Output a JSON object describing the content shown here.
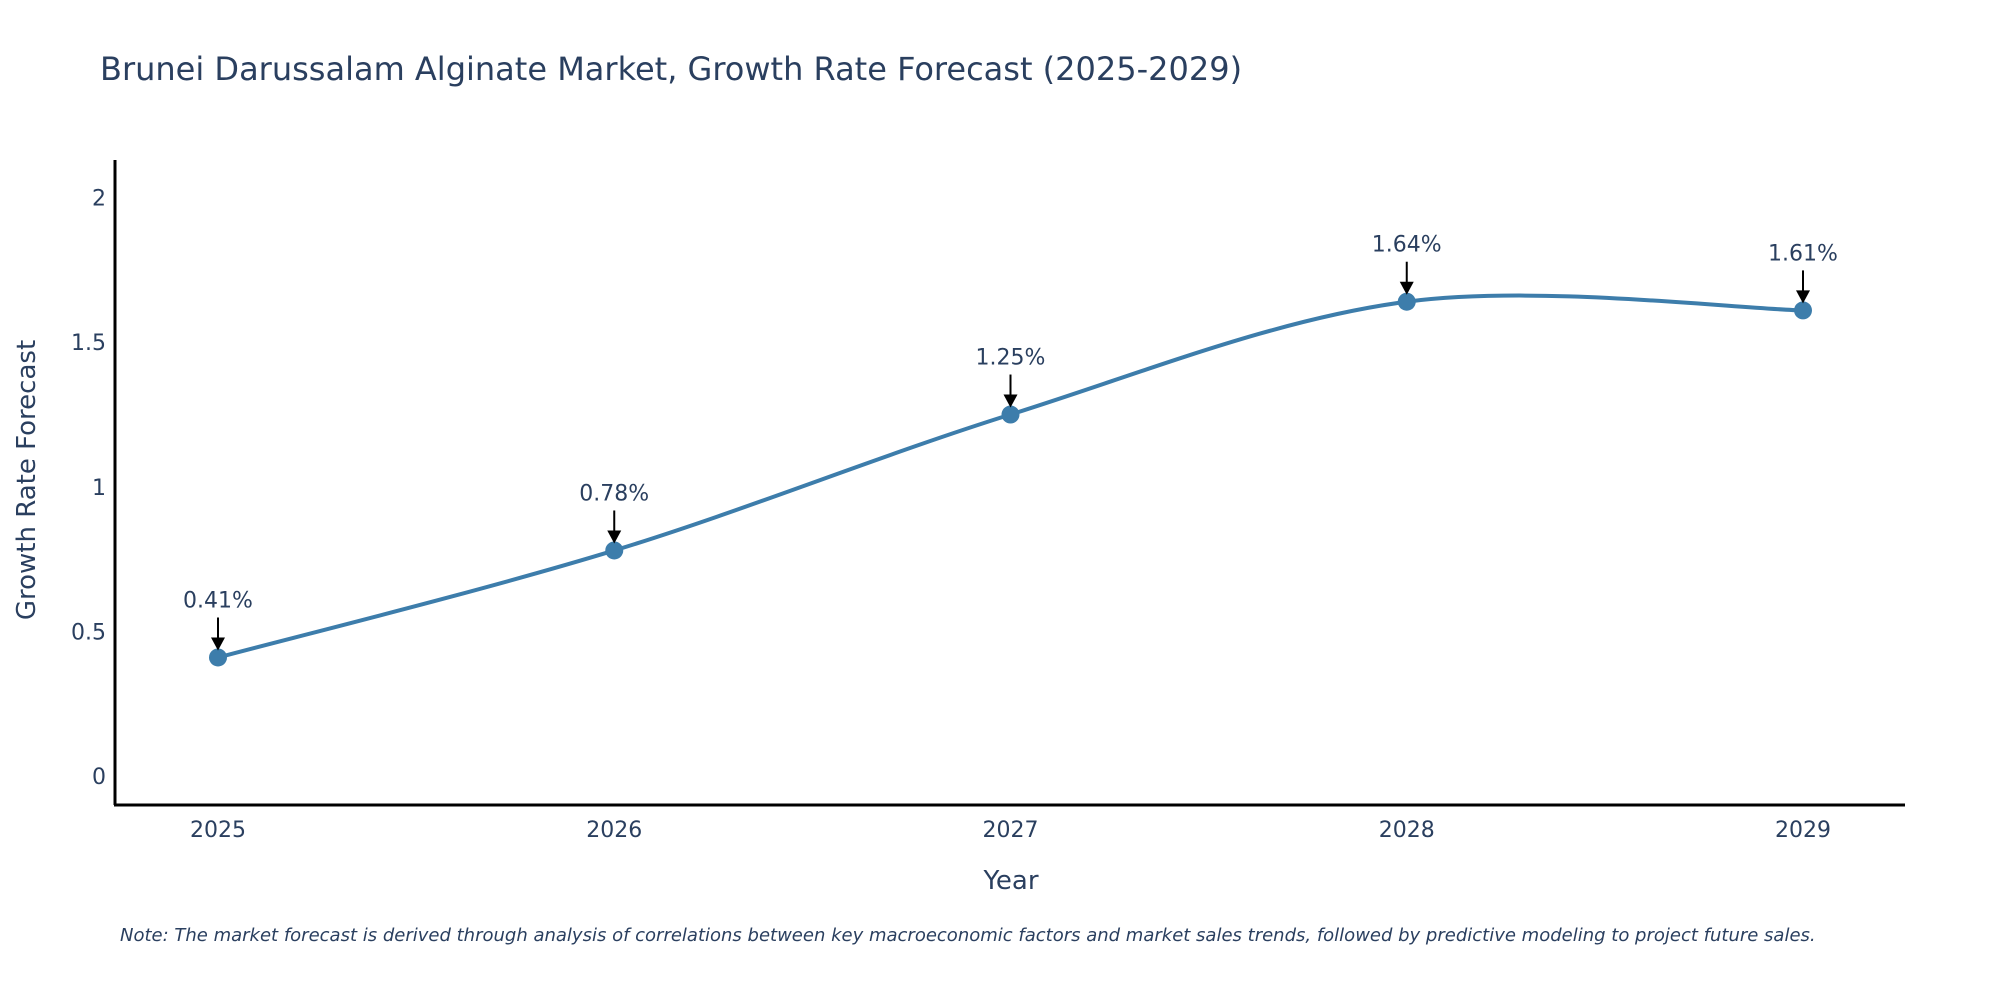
{
  "chart_data": {
    "type": "line",
    "title": "Brunei Darussalam Alginate Market, Growth Rate Forecast (2025-2029)",
    "xlabel": "Year",
    "ylabel": "Growth Rate Forecast",
    "categories": [
      "2025",
      "2026",
      "2027",
      "2028",
      "2029"
    ],
    "values": [
      0.41,
      0.78,
      1.25,
      1.64,
      1.61
    ],
    "data_labels": [
      "0.41%",
      "0.78%",
      "1.25%",
      "1.64%",
      "1.61%"
    ],
    "y_ticks": [
      0,
      0.5,
      1,
      1.5,
      2
    ],
    "y_tick_labels": [
      "0",
      "0.5",
      "1",
      "1.5",
      "2"
    ],
    "ylim": [
      -0.1,
      2.13
    ],
    "line_shape": "spline",
    "grid": false,
    "line_color": "#3d7dab",
    "marker_color": "#3d7dab",
    "arrow_color": "#000000",
    "note": "Note: The market forecast is derived through analysis of correlations between key macroeconomic factors and market sales trends, followed by predictive modeling to project future sales."
  }
}
